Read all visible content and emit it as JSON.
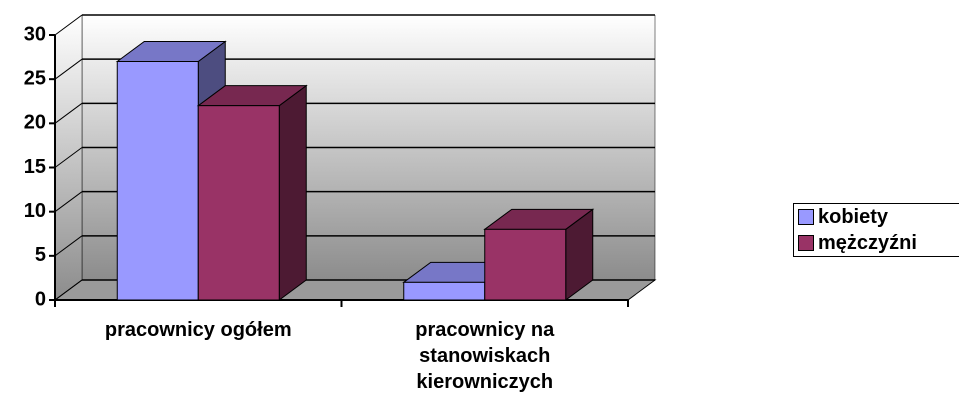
{
  "chart_data": {
    "type": "bar3d",
    "categories": [
      "pracownicy ogółem",
      "pracownicy na stanowiskach kierowniczych"
    ],
    "series": [
      {
        "name": "kobiety",
        "color": "#9999ff",
        "values": [
          27,
          2
        ]
      },
      {
        "name": "mężczyźni",
        "color": "#993366",
        "values": [
          22,
          8
        ]
      }
    ],
    "ylim": [
      0,
      30
    ],
    "yticks": [
      0,
      5,
      10,
      15,
      20,
      25,
      30
    ],
    "grid": true,
    "legend": "right"
  }
}
